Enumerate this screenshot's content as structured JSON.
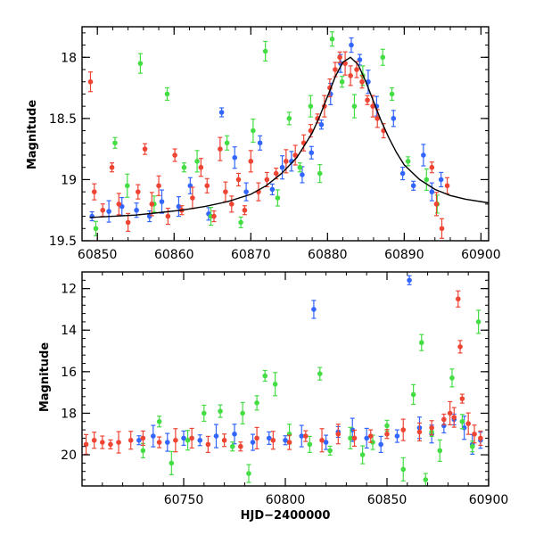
{
  "chart_data": [
    {
      "type": "scatter",
      "title": "",
      "xlabel": "",
      "ylabel": "Magnitude",
      "xlim": [
        60848,
        60901
      ],
      "ylim": [
        19.5,
        17.75
      ],
      "y_inverted": true,
      "x_ticks": [
        60850,
        60860,
        60870,
        60880,
        60890,
        60900
      ],
      "y_ticks": [
        18,
        18.5,
        19,
        19.5
      ],
      "grid": false,
      "model_curve": {
        "color": "#000000",
        "x": [
          60849,
          60852,
          60855,
          60858,
          60861,
          60864,
          60867,
          60870,
          60872,
          60874,
          60876,
          60878,
          60879,
          60880,
          60881,
          60882,
          60883,
          60884,
          60885,
          60886,
          60887,
          60888,
          60889,
          60890,
          60892,
          60894,
          60896,
          60898,
          60901
        ],
        "y": [
          19.31,
          19.3,
          19.29,
          19.27,
          19.25,
          19.22,
          19.18,
          19.12,
          19.05,
          18.95,
          18.82,
          18.62,
          18.48,
          18.32,
          18.16,
          18.04,
          18.0,
          18.06,
          18.2,
          18.36,
          18.52,
          18.66,
          18.78,
          18.88,
          19.0,
          19.08,
          19.13,
          19.16,
          19.19
        ]
      },
      "series": [
        {
          "color": "#3366ff",
          "x": [
            60849.3,
            60851.5,
            60853.2,
            60855.1,
            60856.8,
            60858.4,
            60860.6,
            60862.1,
            60864.5,
            60866.2,
            60867.9,
            60869.4,
            60871.2,
            60872.8,
            60874.1,
            60875.3,
            60876.7,
            60877.9,
            60879.2,
            60880.4,
            60881.7,
            60883.1,
            60884.2,
            60885.3,
            60886.4,
            60888.6,
            60889.8,
            60891.2,
            60892.5,
            60893.6,
            60894.8
          ],
          "y": [
            19.3,
            19.26,
            19.22,
            19.25,
            19.3,
            19.18,
            19.22,
            19.05,
            19.28,
            18.45,
            18.82,
            19.1,
            18.7,
            19.08,
            18.9,
            18.85,
            18.96,
            18.78,
            18.55,
            18.3,
            18.05,
            17.9,
            18.02,
            18.2,
            18.4,
            18.5,
            18.95,
            19.05,
            18.8,
            19.1,
            19.0
          ]
        },
        {
          "color": "#44dd44",
          "x": [
            60849.8,
            60852.3,
            60853.9,
            60855.6,
            60857.4,
            60859.1,
            60861.3,
            60863.0,
            60864.8,
            60866.9,
            60868.7,
            60870.3,
            60871.9,
            60873.5,
            60875.0,
            60876.4,
            60877.8,
            60879.0,
            60880.6,
            60881.9,
            60883.5,
            60884.6,
            60887.2,
            60888.4,
            60890.5,
            60892.9,
            60894.3
          ],
          "y": [
            19.4,
            18.7,
            19.05,
            18.05,
            19.2,
            18.3,
            18.9,
            18.85,
            19.3,
            18.7,
            19.35,
            18.6,
            17.95,
            19.15,
            18.5,
            18.9,
            18.4,
            18.95,
            17.85,
            18.2,
            18.4,
            18.15,
            18.0,
            18.3,
            18.85,
            19.0,
            19.2
          ]
        },
        {
          "color": "#ee4433",
          "x": [
            60849.1,
            60849.6,
            60850.7,
            60851.9,
            60852.8,
            60854.0,
            60855.3,
            60856.2,
            60857.1,
            60858.0,
            60859.2,
            60860.1,
            60861.0,
            60862.4,
            60863.5,
            60864.3,
            60865.2,
            60866.0,
            60866.7,
            60867.5,
            60868.4,
            60869.2,
            60870.0,
            60871.0,
            60872.1,
            60873.3,
            60874.6,
            60875.8,
            60876.9,
            60877.8,
            60878.7,
            60879.6,
            60880.3,
            60881.0,
            60881.6,
            60882.3,
            60883.0,
            60883.8,
            60884.5,
            60885.2,
            60885.9,
            60886.5,
            60887.3,
            60893.6,
            60894.2,
            60894.9,
            60895.6
          ],
          "y": [
            18.2,
            19.1,
            19.25,
            18.9,
            19.2,
            19.35,
            19.1,
            18.75,
            19.2,
            19.05,
            19.3,
            18.8,
            19.25,
            19.15,
            18.9,
            19.05,
            19.3,
            18.75,
            19.1,
            19.2,
            19.0,
            19.25,
            18.85,
            19.1,
            19.0,
            18.95,
            18.85,
            18.8,
            18.7,
            18.6,
            18.5,
            18.4,
            18.25,
            18.1,
            18.0,
            18.05,
            18.15,
            18.1,
            18.2,
            18.35,
            18.4,
            18.5,
            18.6,
            18.9,
            19.2,
            19.4,
            19.05
          ]
        }
      ]
    },
    {
      "type": "scatter",
      "title": "",
      "xlabel": "HJD−2400000",
      "ylabel": "Magnitude",
      "xlim": [
        60700,
        60900
      ],
      "ylim": [
        21.5,
        11.2
      ],
      "y_inverted": true,
      "x_ticks": [
        60750,
        60800,
        60850,
        60900
      ],
      "y_ticks": [
        12,
        14,
        16,
        18,
        20
      ],
      "grid": false,
      "series": [
        {
          "color": "#3366ff",
          "x": [
            60728,
            60735,
            60742,
            60750,
            60758,
            60766,
            60775,
            60784,
            60792,
            60800,
            60808,
            60814,
            60820,
            60826,
            60833,
            60840,
            60847,
            60855,
            60861,
            60866,
            60872,
            60878,
            60883,
            60888,
            60892,
            60896
          ],
          "y": [
            19.3,
            19.1,
            19.4,
            19.2,
            19.3,
            19.1,
            19.0,
            19.4,
            19.2,
            19.3,
            19.1,
            13.0,
            19.4,
            18.9,
            18.8,
            19.2,
            19.5,
            19.1,
            11.6,
            18.7,
            19.0,
            18.6,
            18.3,
            18.7,
            19.5,
            19.3
          ]
        },
        {
          "color": "#44dd44",
          "x": [
            60730,
            60738,
            60744,
            60752,
            60760,
            60768,
            60774,
            60779,
            60782,
            60786,
            60790,
            60795,
            60802,
            60812,
            60817,
            60822,
            60832,
            60838,
            60843,
            60850,
            60858,
            60863,
            60867,
            60869,
            60872,
            60876,
            60882,
            60887,
            60892,
            60895
          ],
          "y": [
            19.8,
            18.4,
            20.4,
            19.3,
            18.0,
            17.9,
            19.6,
            18.0,
            20.9,
            17.5,
            16.2,
            16.6,
            19.0,
            19.5,
            16.1,
            19.8,
            19.2,
            20.0,
            19.4,
            18.6,
            20.7,
            17.1,
            14.6,
            21.2,
            18.9,
            19.8,
            16.3,
            18.4,
            19.6,
            13.6
          ]
        },
        {
          "color": "#ee4433",
          "x": [
            60702,
            60706,
            60710,
            60714,
            60718,
            60724,
            60730,
            60738,
            60746,
            60754,
            60762,
            60770,
            60778,
            60786,
            60794,
            60802,
            60810,
            60818,
            60826,
            60834,
            60842,
            60850,
            60858,
            60866,
            60872,
            60878,
            60881,
            60883,
            60885,
            60886,
            60887,
            60890,
            60893,
            60896
          ],
          "y": [
            19.5,
            19.3,
            19.4,
            19.5,
            19.4,
            19.3,
            19.2,
            19.4,
            19.3,
            19.2,
            19.5,
            19.3,
            19.6,
            19.2,
            19.3,
            19.4,
            19.1,
            19.3,
            19.0,
            19.2,
            19.1,
            19.0,
            18.8,
            18.9,
            18.7,
            18.3,
            18.0,
            18.2,
            12.5,
            14.8,
            17.3,
            18.5,
            19.0,
            19.2
          ]
        }
      ]
    }
  ]
}
